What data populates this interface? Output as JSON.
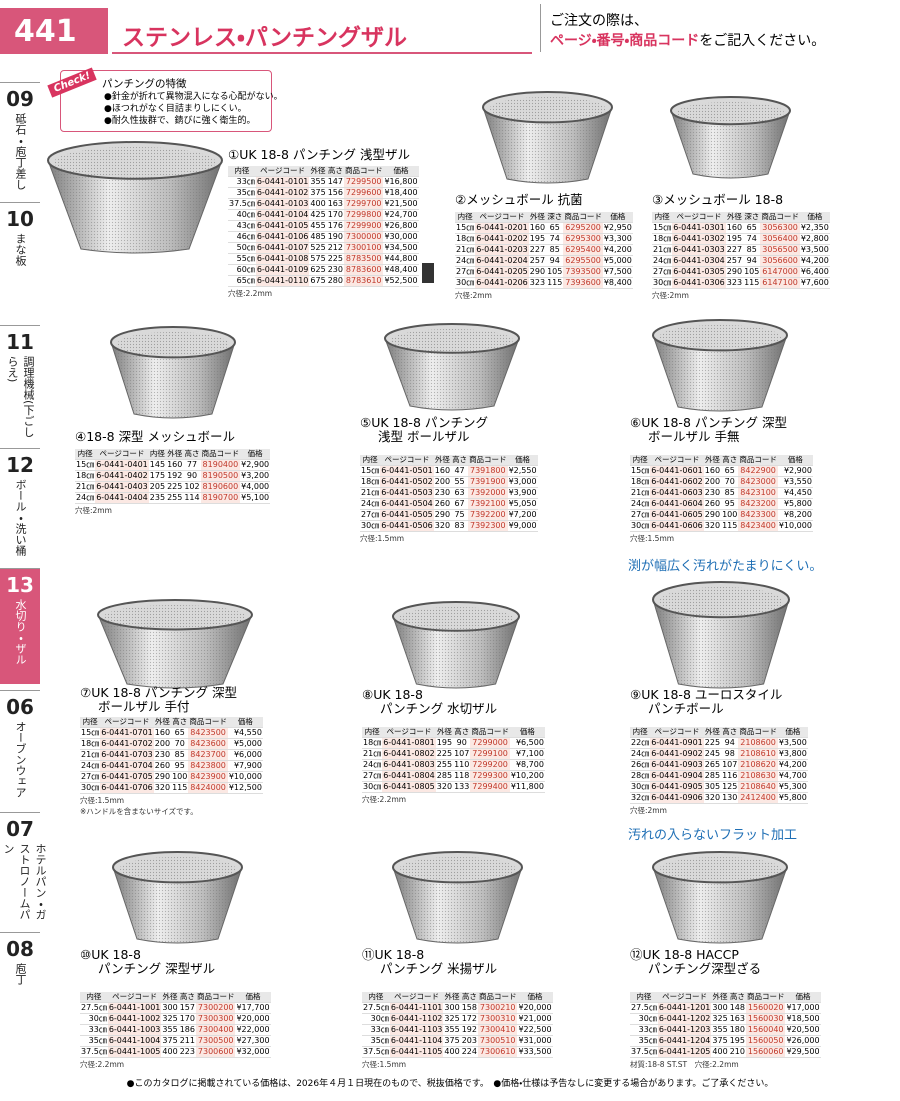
{
  "header": {
    "page": "441",
    "title": "ステンレス・パンチングザル",
    "notice": [
      "ご注文の際は、",
      "ページ・番号・商品コード",
      "をご記入ください。"
    ]
  },
  "side_tabs": [
    {
      "num": "09",
      "label": "砥石・庖丁差し"
    },
    {
      "num": "10",
      "label": "まな板"
    },
    {
      "num": "11",
      "label": "調理機械(下ごしらえ)"
    },
    {
      "num": "12",
      "label": "ボール・洗い桶"
    },
    {
      "num": "13",
      "label": "水切り・ザル",
      "active": true
    },
    {
      "num": "06",
      "label": "オーブンウェア"
    },
    {
      "num": "07",
      "label": "ホテルパン・ガストロノームパン"
    },
    {
      "num": "08",
      "label": "庖丁"
    }
  ],
  "check": {
    "tag": "Check!",
    "title": "パンチングの特徴",
    "items": [
      "●針金が折れて異物混入になる心配がない。",
      "●ほつれがなく目詰まりしにくい。",
      "●耐久性抜群で、錆びに強く衛生的。"
    ]
  },
  "taglines": [
    "渕が幅広く汚れがたまりにくい。",
    "汚れの入らないフラット加工"
  ],
  "products": [
    {
      "title": [
        "①UK 18-8 パンチング 浅型ザル"
      ],
      "headers": [
        "内径",
        "ページコード",
        "外径",
        "高さ",
        "商品コード",
        "価格"
      ],
      "rows": [
        [
          "33㎝",
          "6-0441-0101",
          "355",
          "147",
          "7299500",
          "¥16,800"
        ],
        [
          "35㎝",
          "6-0441-0102",
          "375",
          "156",
          "7299600",
          "¥18,400"
        ],
        [
          "37.5㎝",
          "6-0441-0103",
          "400",
          "163",
          "7299700",
          "¥21,500"
        ],
        [
          "40㎝",
          "6-0441-0104",
          "425",
          "170",
          "7299800",
          "¥24,700"
        ],
        [
          "43㎝",
          "6-0441-0105",
          "455",
          "176",
          "7299900",
          "¥26,800"
        ],
        [
          "46㎝",
          "6-0441-0106",
          "485",
          "190",
          "7300000",
          "¥30,000"
        ],
        [
          "50㎝",
          "6-0441-0107",
          "525",
          "212",
          "7300100",
          "¥34,500"
        ],
        [
          "55㎝",
          "6-0441-0108",
          "575",
          "225",
          "8783500",
          "¥44,800"
        ],
        [
          "60㎝",
          "6-0441-0109",
          "625",
          "230",
          "8783600",
          "¥48,400"
        ],
        [
          "65㎝",
          "6-0441-0110",
          "675",
          "280",
          "8783610",
          "¥52,500"
        ]
      ],
      "note": "穴径:2.2mm"
    },
    {
      "title": [
        "②メッシュボール 抗菌"
      ],
      "headers": [
        "内径",
        "ページコード",
        "外径",
        "深さ",
        "商品コード",
        "価格"
      ],
      "rows": [
        [
          "15㎝",
          "6-0441-0201",
          "160",
          "65",
          "6295200",
          "¥2,950"
        ],
        [
          "18㎝",
          "6-0441-0202",
          "195",
          "74",
          "6295300",
          "¥3,300"
        ],
        [
          "21㎝",
          "6-0441-0203",
          "227",
          "85",
          "6295400",
          "¥4,200"
        ],
        [
          "24㎝",
          "6-0441-0204",
          "257",
          "94",
          "6295500",
          "¥5,000"
        ],
        [
          "27㎝",
          "6-0441-0205",
          "290",
          "105",
          "7393500",
          "¥7,500"
        ],
        [
          "30㎝",
          "6-0441-0206",
          "323",
          "115",
          "7393600",
          "¥8,400"
        ]
      ],
      "note": "穴径:2mm"
    },
    {
      "title": [
        "③メッシュボール 18-8"
      ],
      "headers": [
        "内径",
        "ページコード",
        "外径",
        "深さ",
        "商品コード",
        "価格"
      ],
      "rows": [
        [
          "15㎝",
          "6-0441-0301",
          "160",
          "65",
          "3056300",
          "¥2,350"
        ],
        [
          "18㎝",
          "6-0441-0302",
          "195",
          "74",
          "3056400",
          "¥2,800"
        ],
        [
          "21㎝",
          "6-0441-0303",
          "227",
          "85",
          "3056500",
          "¥3,500"
        ],
        [
          "24㎝",
          "6-0441-0304",
          "257",
          "94",
          "3056600",
          "¥4,200"
        ],
        [
          "27㎝",
          "6-0441-0305",
          "290",
          "105",
          "6147000",
          "¥6,400"
        ],
        [
          "30㎝",
          "6-0441-0306",
          "323",
          "115",
          "6147100",
          "¥7,600"
        ]
      ],
      "note": "穴径:2mm"
    },
    {
      "title": [
        "④18-8 深型 メッシュボール"
      ],
      "headers": [
        "内径",
        "ページコード",
        "内径",
        "外径",
        "高さ",
        "商品コード",
        "価格"
      ],
      "rows": [
        [
          "15㎝",
          "6-0441-0401",
          "145",
          "160",
          "77",
          "8190400",
          "¥2,900"
        ],
        [
          "18㎝",
          "6-0441-0402",
          "175",
          "192",
          "90",
          "8190500",
          "¥3,200"
        ],
        [
          "21㎝",
          "6-0441-0403",
          "205",
          "225",
          "102",
          "8190600",
          "¥4,000"
        ],
        [
          "24㎝",
          "6-0441-0404",
          "235",
          "255",
          "114",
          "8190700",
          "¥5,100"
        ]
      ],
      "note": "穴径:2mm"
    },
    {
      "title": [
        "⑤UK 18-8 パンチング",
        "浅型 ボールザル"
      ],
      "headers": [
        "内径",
        "ページコード",
        "外径",
        "高さ",
        "商品コード",
        "価格"
      ],
      "rows": [
        [
          "15㎝",
          "6-0441-0501",
          "160",
          "47",
          "7391800",
          "¥2,550"
        ],
        [
          "18㎝",
          "6-0441-0502",
          "200",
          "55",
          "7391900",
          "¥3,000"
        ],
        [
          "21㎝",
          "6-0441-0503",
          "230",
          "63",
          "7392000",
          "¥3,900"
        ],
        [
          "24㎝",
          "6-0441-0504",
          "260",
          "67",
          "7392100",
          "¥5,050"
        ],
        [
          "27㎝",
          "6-0441-0505",
          "290",
          "75",
          "7392200",
          "¥7,200"
        ],
        [
          "30㎝",
          "6-0441-0506",
          "320",
          "83",
          "7392300",
          "¥9,000"
        ]
      ],
      "note": "穴径:1.5mm"
    },
    {
      "title": [
        "⑥UK 18-8 パンチング 深型",
        "ボールザル 手無"
      ],
      "headers": [
        "内径",
        "ページコード",
        "外径",
        "高さ",
        "商品コード",
        "価格"
      ],
      "rows": [
        [
          "15㎝",
          "6-0441-0601",
          "160",
          "65",
          "8422900",
          "¥2,900"
        ],
        [
          "18㎝",
          "6-0441-0602",
          "200",
          "70",
          "8423000",
          "¥3,550"
        ],
        [
          "21㎝",
          "6-0441-0603",
          "230",
          "85",
          "8423100",
          "¥4,450"
        ],
        [
          "24㎝",
          "6-0441-0604",
          "260",
          "95",
          "8423200",
          "¥5,800"
        ],
        [
          "27㎝",
          "6-0441-0605",
          "290",
          "100",
          "8423300",
          "¥8,200"
        ],
        [
          "30㎝",
          "6-0441-0606",
          "320",
          "115",
          "8423400",
          "¥10,000"
        ]
      ],
      "note": "穴径:1.5mm"
    },
    {
      "title": [
        "⑦UK 18-8 パンチング 深型",
        "ボールザル 手付"
      ],
      "headers": [
        "内径",
        "ページコード",
        "外径",
        "高さ",
        "商品コード",
        "価格"
      ],
      "rows": [
        [
          "15㎝",
          "6-0441-0701",
          "160",
          "65",
          "8423500",
          "¥4,550"
        ],
        [
          "18㎝",
          "6-0441-0702",
          "200",
          "70",
          "8423600",
          "¥5,000"
        ],
        [
          "21㎝",
          "6-0441-0703",
          "230",
          "85",
          "8423700",
          "¥6,000"
        ],
        [
          "24㎝",
          "6-0441-0704",
          "260",
          "95",
          "8423800",
          "¥7,900"
        ],
        [
          "27㎝",
          "6-0441-0705",
          "290",
          "100",
          "8423900",
          "¥10,000"
        ],
        [
          "30㎝",
          "6-0441-0706",
          "320",
          "115",
          "8424000",
          "¥12,500"
        ]
      ],
      "note": "穴径:1.5mm",
      "note2": "※ハンドルを含まないサイズです。"
    },
    {
      "title": [
        "⑧UK 18-8",
        "パンチング 水切ザル"
      ],
      "headers": [
        "内径",
        "ページコード",
        "外径",
        "高さ",
        "商品コード",
        "価格"
      ],
      "rows": [
        [
          "18㎝",
          "6-0441-0801",
          "195",
          "90",
          "7299000",
          "¥6,500"
        ],
        [
          "21㎝",
          "6-0441-0802",
          "225",
          "107",
          "7299100",
          "¥7,100"
        ],
        [
          "24㎝",
          "6-0441-0803",
          "255",
          "110",
          "7299200",
          "¥8,700"
        ],
        [
          "27㎝",
          "6-0441-0804",
          "285",
          "118",
          "7299300",
          "¥10,200"
        ],
        [
          "30㎝",
          "6-0441-0805",
          "320",
          "133",
          "7299400",
          "¥11,800"
        ]
      ],
      "note": "穴径:2.2mm"
    },
    {
      "title": [
        "⑨UK 18-8 ユーロスタイル",
        "パンチボール"
      ],
      "headers": [
        "内径",
        "ページコード",
        "外径",
        "高さ",
        "商品コード",
        "価格"
      ],
      "rows": [
        [
          "22㎝",
          "6-0441-0901",
          "225",
          "94",
          "2108600",
          "¥3,500"
        ],
        [
          "24㎝",
          "6-0441-0902",
          "245",
          "98",
          "2108610",
          "¥3,800"
        ],
        [
          "26㎝",
          "6-0441-0903",
          "265",
          "107",
          "2108620",
          "¥4,200"
        ],
        [
          "28㎝",
          "6-0441-0904",
          "285",
          "116",
          "2108630",
          "¥4,700"
        ],
        [
          "30㎝",
          "6-0441-0905",
          "305",
          "125",
          "2108640",
          "¥5,300"
        ],
        [
          "32㎝",
          "6-0441-0906",
          "320",
          "130",
          "2412400",
          "¥5,800"
        ]
      ],
      "note": "穴径:2mm"
    },
    {
      "title": [
        "⑩UK 18-8",
        "パンチング 深型ザル"
      ],
      "headers": [
        "内径",
        "ページコード",
        "外径",
        "高さ",
        "商品コード",
        "価格"
      ],
      "rows": [
        [
          "27.5㎝",
          "6-0441-1001",
          "300",
          "157",
          "7300200",
          "¥17,700"
        ],
        [
          "30㎝",
          "6-0441-1002",
          "325",
          "170",
          "7300300",
          "¥20,000"
        ],
        [
          "33㎝",
          "6-0441-1003",
          "355",
          "186",
          "7300400",
          "¥22,000"
        ],
        [
          "35㎝",
          "6-0441-1004",
          "375",
          "211",
          "7300500",
          "¥27,300"
        ],
        [
          "37.5㎝",
          "6-0441-1005",
          "400",
          "223",
          "7300600",
          "¥32,000"
        ]
      ],
      "note": "穴径:2.2mm"
    },
    {
      "title": [
        "⑪UK 18-8",
        "パンチング 米揚ザル"
      ],
      "headers": [
        "内径",
        "ページコード",
        "外径",
        "高さ",
        "商品コード",
        "価格"
      ],
      "rows": [
        [
          "27.5㎝",
          "6-0441-1101",
          "300",
          "158",
          "7300210",
          "¥20,000"
        ],
        [
          "30㎝",
          "6-0441-1102",
          "325",
          "172",
          "7300310",
          "¥21,000"
        ],
        [
          "33㎝",
          "6-0441-1103",
          "355",
          "192",
          "7300410",
          "¥22,500"
        ],
        [
          "35㎝",
          "6-0441-1104",
          "375",
          "203",
          "7300510",
          "¥31,000"
        ],
        [
          "37.5㎝",
          "6-0441-1105",
          "400",
          "224",
          "7300610",
          "¥33,500"
        ]
      ],
      "note": "穴径:1.5mm"
    },
    {
      "title": [
        "⑫UK 18-8 HACCP",
        "パンチング深型ざる"
      ],
      "headers": [
        "内径",
        "ページコード",
        "外径",
        "高さ",
        "商品コード",
        "価格"
      ],
      "rows": [
        [
          "27.5㎝",
          "6-0441-1201",
          "300",
          "148",
          "1560020",
          "¥17,000"
        ],
        [
          "30㎝",
          "6-0441-1202",
          "325",
          "163",
          "1560030",
          "¥18,500"
        ],
        [
          "33㎝",
          "6-0441-1203",
          "355",
          "180",
          "1560040",
          "¥20,500"
        ],
        [
          "35㎝",
          "6-0441-1204",
          "375",
          "195",
          "1560050",
          "¥26,000"
        ],
        [
          "37.5㎝",
          "6-0441-1205",
          "400",
          "210",
          "1560060",
          "¥29,500"
        ]
      ],
      "note": "材質:18-8 ST.ST　穴径:2.2mm"
    }
  ],
  "footer": "●このカタログに掲載されている価格は、2026年４月１日現在のもので、税抜価格です。　●価格・仕様は予告なしに変更する場合があります。ご了承ください。"
}
